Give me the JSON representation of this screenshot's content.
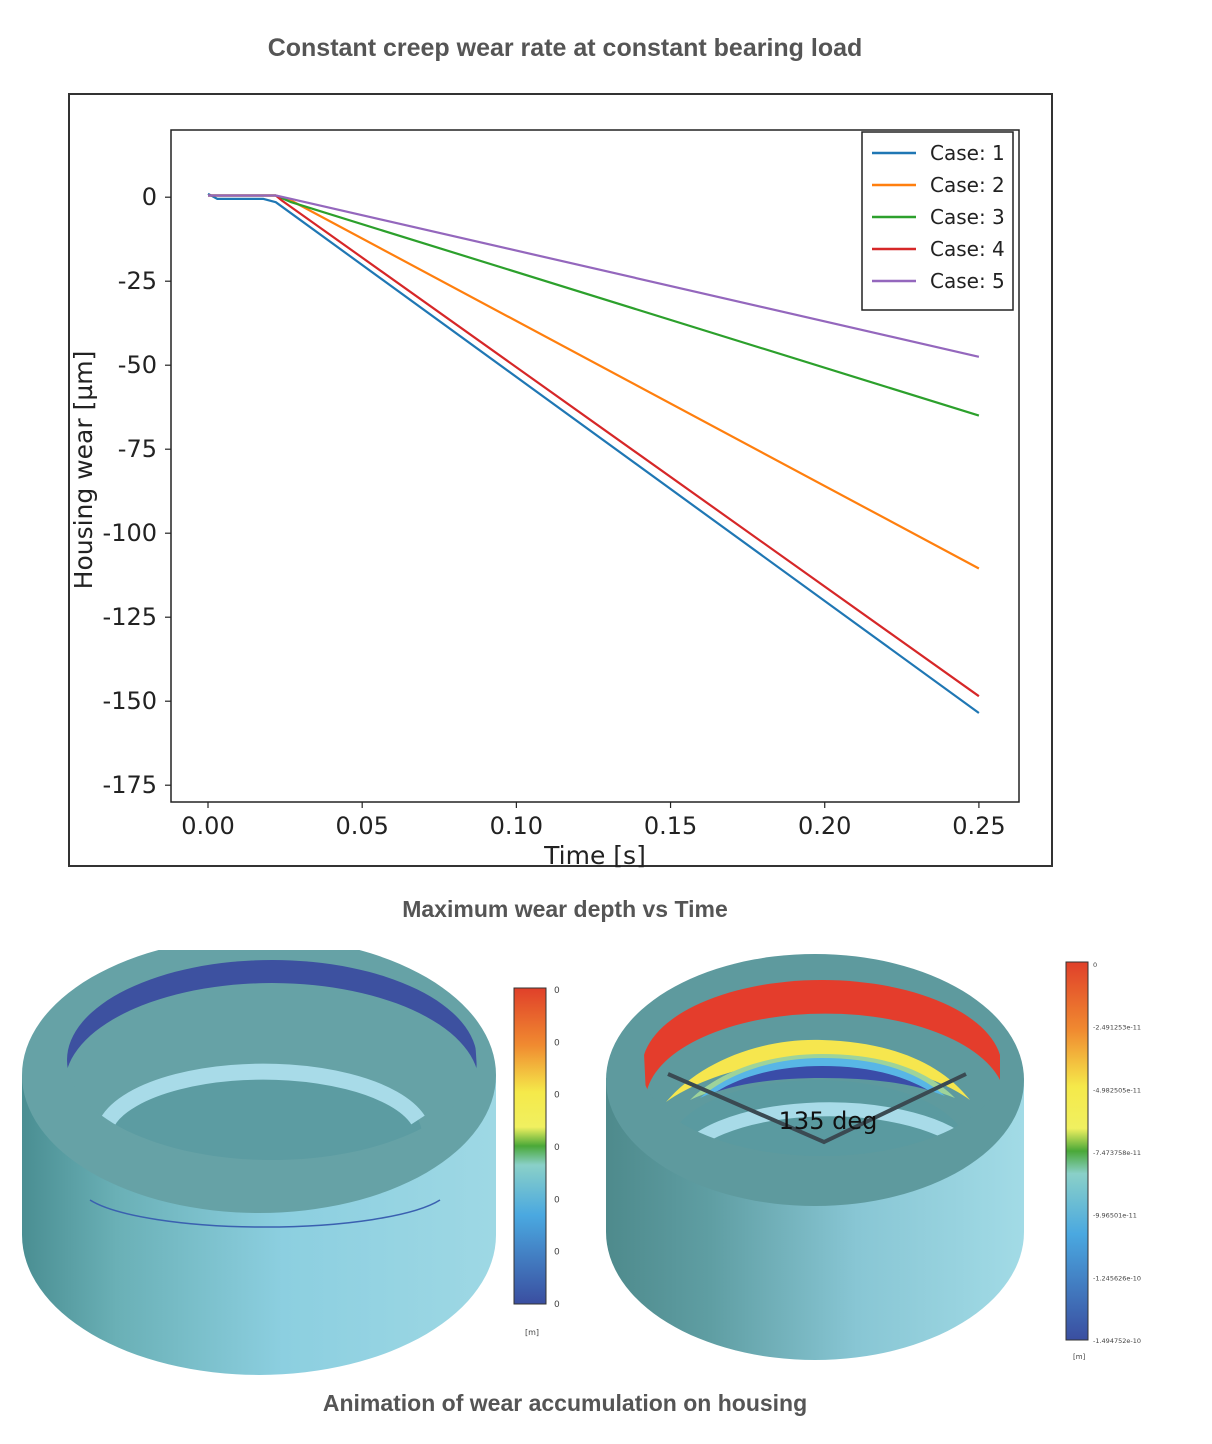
{
  "page": {
    "title": "Constant creep wear rate at constant bearing load",
    "chart_caption": "Maximum wear depth vs Time",
    "animation_caption": "Animation of wear accumulation on housing"
  },
  "chart_data": {
    "type": "line",
    "xlabel": "Time [s]",
    "ylabel": "Housing wear [µm]",
    "xlim": [
      -0.012,
      0.263
    ],
    "ylim": [
      -180,
      20
    ],
    "xticks": [
      "0.00",
      "0.05",
      "0.10",
      "0.15",
      "0.20",
      "0.25"
    ],
    "yticks": [
      "0",
      "-25",
      "-50",
      "-75",
      "-100",
      "-125",
      "-150",
      "-175"
    ],
    "grid": false,
    "legend_position": "top-right",
    "series": [
      {
        "name": "Case: 1",
        "color": "#1f77b4",
        "x": [
          0.0,
          0.003,
          0.018,
          0.022,
          0.25
        ],
        "y": [
          1,
          -0.5,
          -0.5,
          -1.5,
          -153.5
        ]
      },
      {
        "name": "Case: 2",
        "color": "#ff7f0e",
        "x": [
          0.0,
          0.022,
          0.027,
          0.25
        ],
        "y": [
          0.5,
          0.5,
          -1,
          -110.5
        ]
      },
      {
        "name": "Case: 3",
        "color": "#2ca02c",
        "x": [
          0.0,
          0.022,
          0.027,
          0.25
        ],
        "y": [
          0.5,
          0.5,
          -1.5,
          -65
        ]
      },
      {
        "name": "Case: 4",
        "color": "#d62728",
        "x": [
          0.0,
          0.022,
          0.024,
          0.25
        ],
        "y": [
          0.5,
          0.5,
          -1,
          -148.5
        ]
      },
      {
        "name": "Case: 5",
        "color": "#9467bd",
        "x": [
          0.0,
          0.022,
          0.027,
          0.25
        ],
        "y": [
          0.5,
          0.5,
          -0.5,
          -47.5
        ]
      }
    ]
  },
  "renders": {
    "left_colorbar": {
      "labels": [
        "0",
        "0",
        "0",
        "0",
        "0",
        "0",
        "0"
      ],
      "unit": "[m]"
    },
    "right_colorbar": {
      "labels": [
        "0",
        "-2.491253e-11",
        "-4.982505e-11",
        "-7.473758e-11",
        "-9.96501e-11",
        "-1.245626e-10",
        "-1.494752e-10"
      ],
      "unit": "[m]"
    },
    "angle_annotation": "135 deg"
  }
}
